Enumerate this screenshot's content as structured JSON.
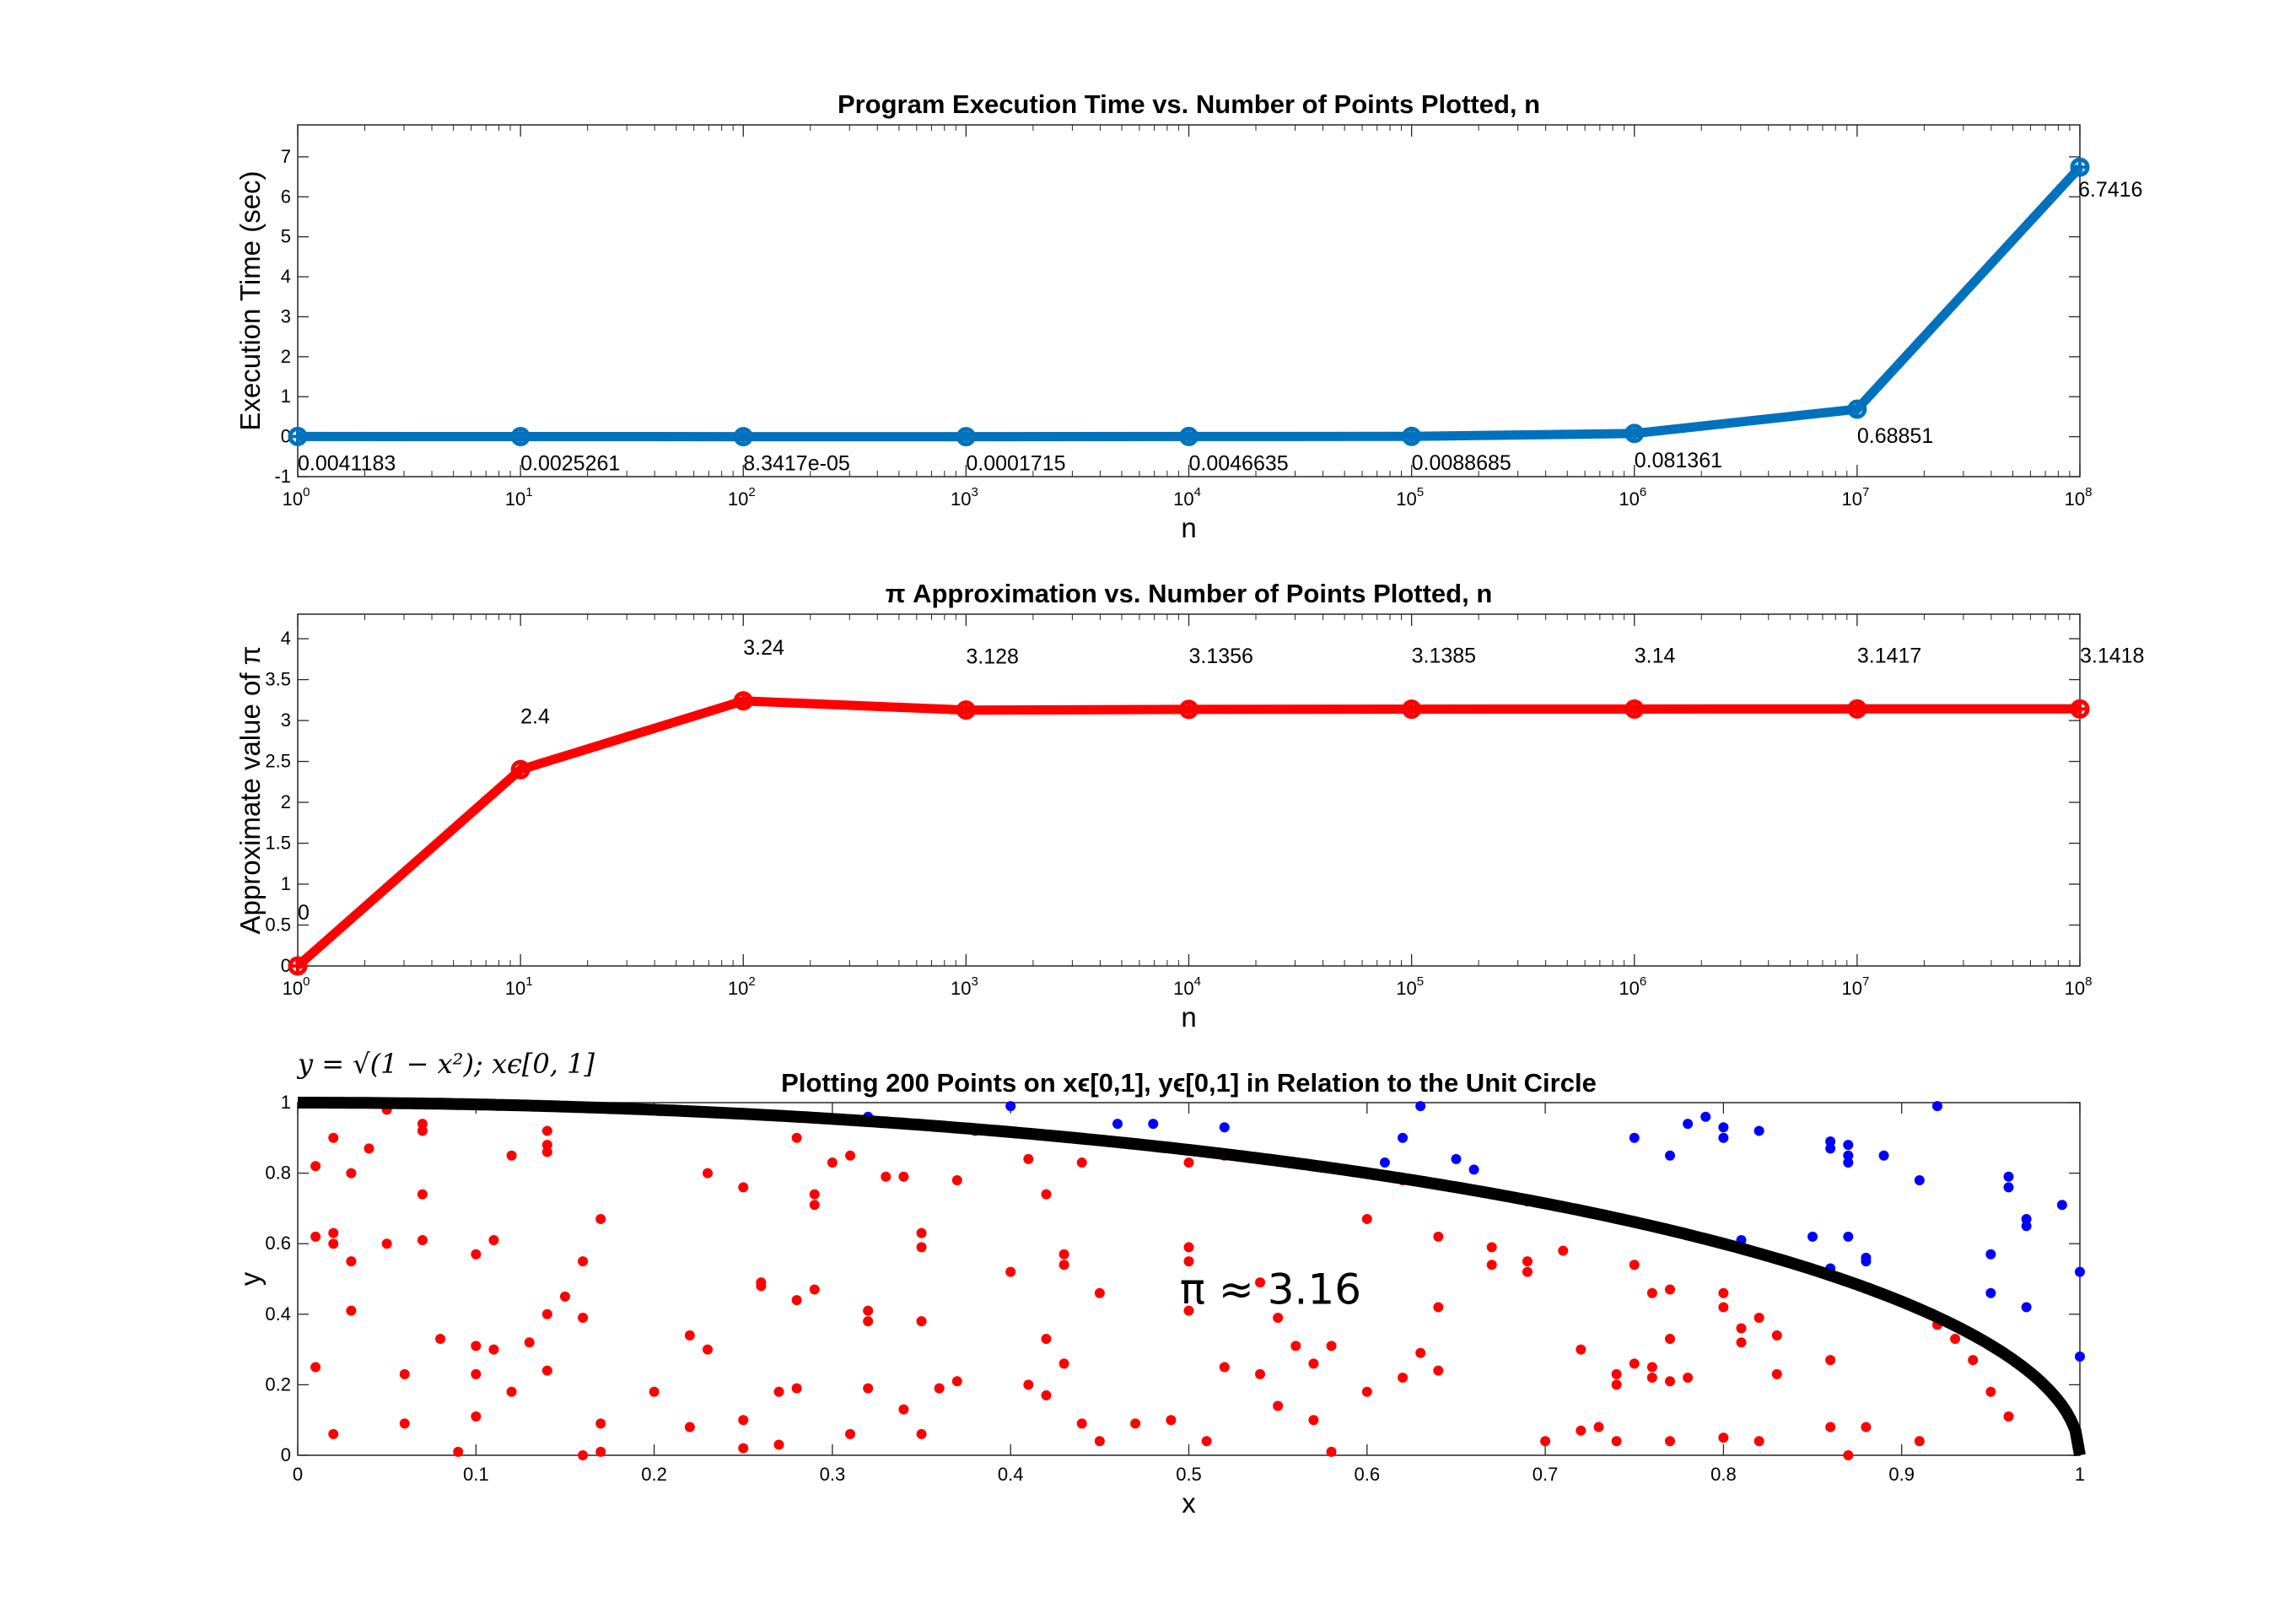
{
  "colors": {
    "series1": "#0072BD",
    "series2": "#FF0000",
    "inside": "#FF0000",
    "outside": "#0000FF",
    "curve": "#000000"
  },
  "chart_data": [
    {
      "type": "line",
      "title": "Program Execution Time vs. Number of Points Plotted, n",
      "xlabel": "n",
      "ylabel": "Execution Time (sec)",
      "xscale": "log",
      "xlim": [
        1,
        100000000
      ],
      "ylim": [
        -1,
        7.8
      ],
      "yticks": [
        "-1",
        "0",
        "1",
        "2",
        "3",
        "4",
        "5",
        "6",
        "7"
      ],
      "x": [
        1,
        10,
        100,
        1000,
        10000,
        100000,
        1000000,
        10000000,
        100000000
      ],
      "values": [
        0.0041183,
        0.0025261,
        8.3417e-05,
        0.0001715,
        0.0046635,
        0.0088685,
        0.081361,
        0.68851,
        6.7416
      ],
      "data_labels": [
        "0.0041183",
        "0.0025261",
        "8.3417e-05",
        "0.0001715",
        "0.0046635",
        "0.0088685",
        "0.081361",
        "0.68851",
        "6.7416"
      ],
      "grid": false
    },
    {
      "type": "line",
      "title": "π Approximation vs. Number of Points Plotted, n",
      "xlabel": "n",
      "ylabel": "Approximate value of π",
      "xscale": "log",
      "xlim": [
        1,
        100000000
      ],
      "ylim": [
        0,
        4.3
      ],
      "yticks": [
        "0",
        "0.5",
        "1",
        "1.5",
        "2",
        "2.5",
        "3",
        "3.5",
        "4"
      ],
      "x": [
        1,
        10,
        100,
        1000,
        10000,
        100000,
        1000000,
        10000000,
        100000000
      ],
      "values": [
        0,
        2.4,
        3.24,
        3.128,
        3.1356,
        3.1385,
        3.14,
        3.1417,
        3.1418
      ],
      "data_labels": [
        "0",
        "2.4",
        "3.24",
        "3.128",
        "3.1356",
        "3.1385",
        "3.14",
        "3.1417",
        "3.1418"
      ],
      "grid": false
    },
    {
      "type": "scatter",
      "title": "Plotting 200 Points on xϵ[0,1], yϵ[0,1] in Relation to the Unit Circle",
      "xlabel": "x",
      "ylabel": "y",
      "xlim": [
        0,
        1
      ],
      "ylim": [
        0,
        1
      ],
      "xticks": [
        "0",
        "0.1",
        "0.2",
        "0.3",
        "0.4",
        "0.5",
        "0.6",
        "0.7",
        "0.8",
        "0.9",
        "1"
      ],
      "yticks": [
        "0",
        "0.2",
        "0.4",
        "0.6",
        "0.8",
        "1"
      ],
      "curve_label": "y = √(1 − x²); xϵ[0, 1]",
      "annotation": "π ≈ 3.16",
      "series": [
        {
          "color": "blue",
          "points": [
            [
              0.32,
              0.96
            ],
            [
              0.4,
              0.99
            ],
            [
              0.46,
              0.94
            ],
            [
              0.48,
              0.94
            ],
            [
              0.52,
              0.93
            ],
            [
              0.61,
              0.83
            ],
            [
              0.62,
              0.9
            ],
            [
              0.63,
              0.99
            ],
            [
              0.65,
              0.84
            ],
            [
              0.66,
              0.81
            ],
            [
              0.69,
              0.72
            ],
            [
              0.75,
              0.9
            ],
            [
              0.77,
              0.85
            ],
            [
              0.78,
              0.94
            ],
            [
              0.79,
              0.96
            ],
            [
              0.8,
              0.9
            ],
            [
              0.8,
              0.93
            ],
            [
              0.81,
              0.61
            ],
            [
              0.82,
              0.92
            ],
            [
              0.85,
              0.62
            ],
            [
              0.86,
              0.87
            ],
            [
              0.86,
              0.89
            ],
            [
              0.87,
              0.85
            ],
            [
              0.87,
              0.88
            ],
            [
              0.87,
              0.83
            ],
            [
              0.87,
              0.62
            ],
            [
              0.88,
              0.56
            ],
            [
              0.88,
              0.55
            ],
            [
              0.86,
              0.53
            ],
            [
              0.89,
              0.85
            ],
            [
              0.91,
              0.78
            ],
            [
              0.92,
              0.99
            ],
            [
              0.95,
              0.57
            ],
            [
              0.95,
              0.46
            ],
            [
              0.96,
              0.79
            ],
            [
              0.96,
              0.76
            ],
            [
              0.97,
              0.67
            ],
            [
              0.97,
              0.65
            ],
            [
              0.97,
              0.42
            ],
            [
              0.99,
              0.71
            ],
            [
              1.0,
              0.52
            ],
            [
              1.0,
              0.28
            ]
          ]
        },
        {
          "color": "red",
          "points": [
            [
              0.01,
              0.25
            ],
            [
              0.01,
              0.62
            ],
            [
              0.01,
              0.82
            ],
            [
              0.02,
              0.6
            ],
            [
              0.02,
              0.63
            ],
            [
              0.02,
              0.06
            ],
            [
              0.02,
              0.9
            ],
            [
              0.03,
              0.55
            ],
            [
              0.03,
              0.8
            ],
            [
              0.03,
              0.41
            ],
            [
              0.04,
              0.87
            ],
            [
              0.05,
              0.98
            ],
            [
              0.05,
              0.6
            ],
            [
              0.06,
              0.23
            ],
            [
              0.06,
              0.09
            ],
            [
              0.07,
              0.92
            ],
            [
              0.07,
              0.94
            ],
            [
              0.07,
              0.74
            ],
            [
              0.07,
              0.61
            ],
            [
              0.08,
              0.33
            ],
            [
              0.09,
              0.01
            ],
            [
              0.1,
              0.31
            ],
            [
              0.1,
              0.11
            ],
            [
              0.1,
              0.57
            ],
            [
              0.1,
              0.23
            ],
            [
              0.11,
              0.3
            ],
            [
              0.11,
              0.61
            ],
            [
              0.12,
              0.18
            ],
            [
              0.12,
              0.85
            ],
            [
              0.13,
              0.32
            ],
            [
              0.14,
              0.24
            ],
            [
              0.14,
              0.86
            ],
            [
              0.14,
              0.92
            ],
            [
              0.14,
              0.88
            ],
            [
              0.14,
              0.4
            ],
            [
              0.15,
              0.45
            ],
            [
              0.16,
              0.39
            ],
            [
              0.16,
              0.55
            ],
            [
              0.16,
              0.0
            ],
            [
              0.17,
              0.01
            ],
            [
              0.17,
              0.67
            ],
            [
              0.17,
              0.09
            ],
            [
              0.2,
              0.18
            ],
            [
              0.22,
              0.34
            ],
            [
              0.22,
              0.08
            ],
            [
              0.23,
              0.8
            ],
            [
              0.23,
              0.3
            ],
            [
              0.25,
              0.1
            ],
            [
              0.25,
              0.76
            ],
            [
              0.25,
              0.02
            ],
            [
              0.26,
              0.49
            ],
            [
              0.26,
              0.48
            ],
            [
              0.27,
              0.03
            ],
            [
              0.27,
              0.18
            ],
            [
              0.28,
              0.9
            ],
            [
              0.28,
              0.19
            ],
            [
              0.28,
              0.44
            ],
            [
              0.29,
              0.47
            ],
            [
              0.29,
              0.71
            ],
            [
              0.29,
              0.74
            ],
            [
              0.3,
              0.83
            ],
            [
              0.31,
              0.06
            ],
            [
              0.31,
              0.85
            ],
            [
              0.32,
              0.38
            ],
            [
              0.32,
              0.19
            ],
            [
              0.32,
              0.41
            ],
            [
              0.33,
              0.79
            ],
            [
              0.34,
              0.13
            ],
            [
              0.34,
              0.79
            ],
            [
              0.35,
              0.38
            ],
            [
              0.35,
              0.06
            ],
            [
              0.35,
              0.59
            ],
            [
              0.35,
              0.63
            ],
            [
              0.36,
              0.19
            ],
            [
              0.37,
              0.78
            ],
            [
              0.37,
              0.21
            ],
            [
              0.38,
              0.92
            ],
            [
              0.39,
              0.92
            ],
            [
              0.4,
              0.52
            ],
            [
              0.41,
              0.2
            ],
            [
              0.41,
              0.84
            ],
            [
              0.42,
              0.33
            ],
            [
              0.42,
              0.17
            ],
            [
              0.42,
              0.74
            ],
            [
              0.43,
              0.54
            ],
            [
              0.43,
              0.57
            ],
            [
              0.43,
              0.26
            ],
            [
              0.44,
              0.83
            ],
            [
              0.44,
              0.09
            ],
            [
              0.45,
              0.46
            ],
            [
              0.45,
              0.04
            ],
            [
              0.47,
              0.09
            ],
            [
              0.49,
              0.1
            ],
            [
              0.5,
              0.83
            ],
            [
              0.5,
              0.59
            ],
            [
              0.5,
              0.55
            ],
            [
              0.5,
              0.41
            ],
            [
              0.51,
              0.04
            ],
            [
              0.52,
              0.85
            ],
            [
              0.52,
              0.25
            ],
            [
              0.54,
              0.49
            ],
            [
              0.54,
              0.23
            ],
            [
              0.55,
              0.14
            ],
            [
              0.55,
              0.39
            ],
            [
              0.56,
              0.31
            ],
            [
              0.57,
              0.26
            ],
            [
              0.57,
              0.1
            ],
            [
              0.58,
              0.01
            ],
            [
              0.58,
              0.31
            ],
            [
              0.6,
              0.18
            ],
            [
              0.6,
              0.67
            ],
            [
              0.62,
              0.78
            ],
            [
              0.62,
              0.22
            ],
            [
              0.63,
              0.29
            ],
            [
              0.64,
              0.42
            ],
            [
              0.64,
              0.24
            ],
            [
              0.64,
              0.62
            ],
            [
              0.67,
              0.54
            ],
            [
              0.67,
              0.59
            ],
            [
              0.69,
              0.52
            ],
            [
              0.69,
              0.55
            ],
            [
              0.7,
              0.04
            ],
            [
              0.71,
              0.58
            ],
            [
              0.72,
              0.07
            ],
            [
              0.72,
              0.3
            ],
            [
              0.73,
              0.08
            ],
            [
              0.74,
              0.2
            ],
            [
              0.74,
              0.23
            ],
            [
              0.74,
              0.04
            ],
            [
              0.75,
              0.26
            ],
            [
              0.75,
              0.54
            ],
            [
              0.76,
              0.22
            ],
            [
              0.76,
              0.25
            ],
            [
              0.76,
              0.46
            ],
            [
              0.77,
              0.47
            ],
            [
              0.77,
              0.33
            ],
            [
              0.77,
              0.04
            ],
            [
              0.77,
              0.21
            ],
            [
              0.78,
              0.22
            ],
            [
              0.8,
              0.46
            ],
            [
              0.8,
              0.42
            ],
            [
              0.8,
              0.05
            ],
            [
              0.81,
              0.32
            ],
            [
              0.81,
              0.36
            ],
            [
              0.82,
              0.04
            ],
            [
              0.82,
              0.39
            ],
            [
              0.83,
              0.34
            ],
            [
              0.83,
              0.23
            ],
            [
              0.86,
              0.27
            ],
            [
              0.86,
              0.08
            ],
            [
              0.87,
              0.0
            ],
            [
              0.88,
              0.08
            ],
            [
              0.91,
              0.04
            ],
            [
              0.92,
              0.37
            ],
            [
              0.93,
              0.33
            ],
            [
              0.94,
              0.27
            ],
            [
              0.95,
              0.18
            ],
            [
              0.96,
              0.11
            ]
          ]
        }
      ],
      "grid": false
    }
  ]
}
